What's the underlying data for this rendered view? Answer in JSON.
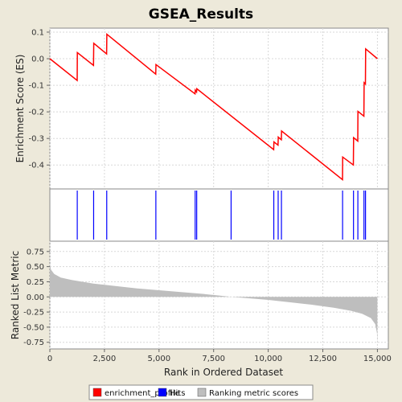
{
  "chart_data": {
    "type": "line",
    "title": "GSEA_Results",
    "xlabel": "Rank in Ordered Dataset",
    "xlim": [
      0,
      15500
    ],
    "x_ticks": [
      0,
      2500,
      5000,
      7500,
      10000,
      12500,
      15000
    ],
    "x_tick_labels": [
      "0",
      "2,500",
      "5,000",
      "7,500",
      "10,000",
      "12,500",
      "15,000"
    ],
    "n_genes": 15000,
    "enrichment_panel": {
      "ylabel": "Enrichment Score (ES)",
      "ylim": [
        -0.49,
        0.115
      ],
      "y_ticks": [
        0.1,
        0.0,
        -0.1,
        -0.2,
        -0.3,
        -0.4
      ],
      "y_tick_labels": [
        "0.1",
        "0.0",
        "-0.1",
        "-0.2",
        "-0.3",
        "-0.4"
      ],
      "grid": true,
      "series": [
        {
          "name": "enrichment_profile",
          "color": "#FF0000",
          "points": [
            [
              0,
              0.0
            ],
            [
              1250,
              -0.082
            ],
            [
              1260,
              0.023
            ],
            [
              2000,
              -0.025
            ],
            [
              2010,
              0.058
            ],
            [
              2600,
              0.018
            ],
            [
              2610,
              0.092
            ],
            [
              4850,
              -0.058
            ],
            [
              4860,
              -0.022
            ],
            [
              6650,
              -0.132
            ],
            [
              6660,
              -0.118
            ],
            [
              6720,
              -0.125
            ],
            [
              6730,
              -0.113
            ],
            [
              10250,
              -0.342
            ],
            [
              10260,
              -0.313
            ],
            [
              10450,
              -0.325
            ],
            [
              10460,
              -0.295
            ],
            [
              10600,
              -0.305
            ],
            [
              10610,
              -0.272
            ],
            [
              13400,
              -0.455
            ],
            [
              13410,
              -0.37
            ],
            [
              13900,
              -0.4
            ],
            [
              13910,
              -0.297
            ],
            [
              14100,
              -0.31
            ],
            [
              14110,
              -0.198
            ],
            [
              14380,
              -0.216
            ],
            [
              14390,
              -0.09
            ],
            [
              14450,
              -0.095
            ],
            [
              14460,
              0.037
            ],
            [
              15000,
              0.0
            ]
          ]
        }
      ]
    },
    "hits_panel": {
      "name": "Hits",
      "color": "#0000FF",
      "positions": [
        1255,
        2005,
        2605,
        4855,
        6655,
        6725,
        8300,
        10255,
        10455,
        10605,
        13405,
        13905,
        14105,
        14385,
        14455
      ]
    },
    "ranking_panel": {
      "name": "Ranking metric scores",
      "ylabel": "Ranked List Metric",
      "ylim": [
        -0.86,
        0.92
      ],
      "y_ticks": [
        0.75,
        0.5,
        0.25,
        0.0,
        -0.25,
        -0.5,
        -0.75
      ],
      "y_tick_labels": [
        "0.75",
        "0.50",
        "0.25",
        "0.00",
        "-0.25",
        "-0.50",
        "-0.75"
      ],
      "grid": true,
      "color": "#BEBEBE",
      "profile": [
        [
          0,
          0.55
        ],
        [
          50,
          0.45
        ],
        [
          200,
          0.38
        ],
        [
          500,
          0.32
        ],
        [
          1000,
          0.28
        ],
        [
          2000,
          0.22
        ],
        [
          3000,
          0.18
        ],
        [
          4000,
          0.14
        ],
        [
          5000,
          0.11
        ],
        [
          6000,
          0.08
        ],
        [
          7000,
          0.05
        ],
        [
          7800,
          0.02
        ],
        [
          8300,
          0.0
        ],
        [
          9000,
          -0.02
        ],
        [
          10000,
          -0.05
        ],
        [
          11000,
          -0.09
        ],
        [
          12000,
          -0.13
        ],
        [
          13000,
          -0.18
        ],
        [
          13800,
          -0.23
        ],
        [
          14300,
          -0.28
        ],
        [
          14700,
          -0.35
        ],
        [
          14900,
          -0.45
        ],
        [
          14980,
          -0.6
        ],
        [
          15000,
          -0.8
        ]
      ]
    },
    "legend": {
      "placement": "bottom",
      "items": [
        {
          "label": "enrichment_profile",
          "color": "#FF0000"
        },
        {
          "label": "Hits",
          "color": "#0000FF"
        },
        {
          "label": "Ranking metric scores",
          "color": "#BEBEBE"
        }
      ]
    }
  }
}
